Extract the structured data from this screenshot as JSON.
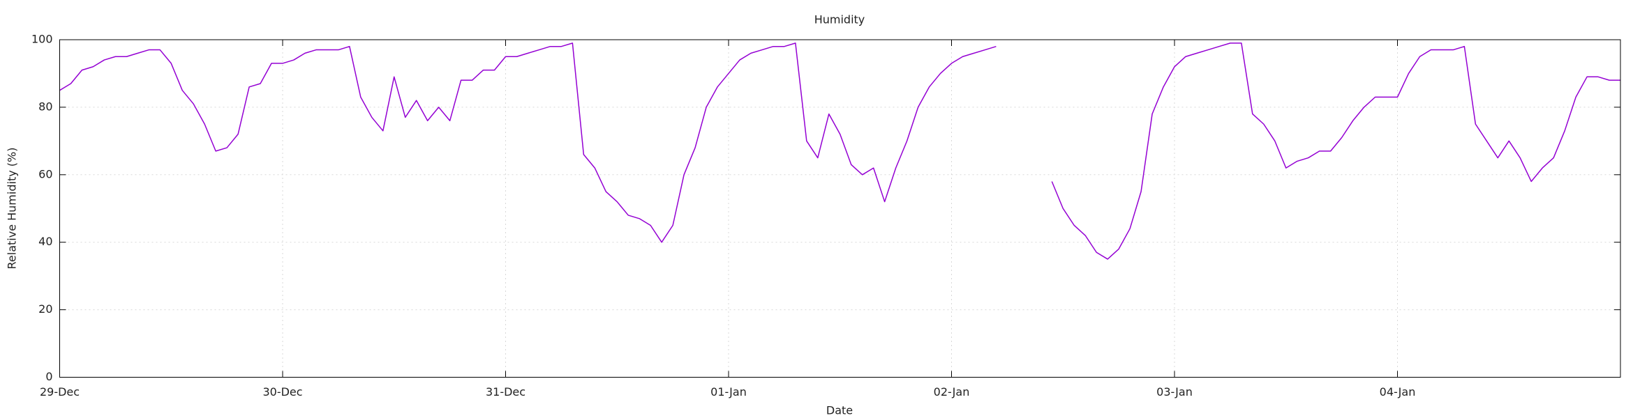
{
  "chart_data": {
    "type": "line",
    "title": "Humidity",
    "xlabel": "Date",
    "ylabel": "Relative Humidity (%)",
    "xlim": [
      0,
      7
    ],
    "xticks": [
      {
        "value": 0,
        "label": "29-Dec"
      },
      {
        "value": 1,
        "label": "30-Dec"
      },
      {
        "value": 2,
        "label": "31-Dec"
      },
      {
        "value": 3,
        "label": "01-Jan"
      },
      {
        "value": 4,
        "label": "02-Jan"
      },
      {
        "value": 5,
        "label": "03-Jan"
      },
      {
        "value": 6,
        "label": "04-Jan"
      }
    ],
    "ylim": [
      0,
      100
    ],
    "yticks": [
      0,
      20,
      40,
      60,
      80,
      100
    ],
    "grid": true,
    "x": [
      0,
      0.05,
      0.1,
      0.15,
      0.2,
      0.25,
      0.3,
      0.35,
      0.4,
      0.45,
      0.5,
      0.55,
      0.6,
      0.65,
      0.7,
      0.75,
      0.8,
      0.85,
      0.9,
      0.95,
      1,
      1.05,
      1.1,
      1.15,
      1.2,
      1.25,
      1.3,
      1.35,
      1.4,
      1.45,
      1.5,
      1.55,
      1.6,
      1.65,
      1.7,
      1.75,
      1.8,
      1.85,
      1.9,
      1.95,
      2,
      2.05,
      2.1,
      2.15,
      2.2,
      2.25,
      2.3,
      2.35,
      2.4,
      2.45,
      2.5,
      2.55,
      2.6,
      2.65,
      2.7,
      2.75,
      2.8,
      2.85,
      2.9,
      2.95,
      3,
      3.05,
      3.1,
      3.15,
      3.2,
      3.25,
      3.3,
      3.35,
      3.4,
      3.45,
      3.5,
      3.55,
      3.6,
      3.65,
      3.7,
      3.75,
      3.8,
      3.85,
      3.9,
      3.95,
      4,
      4.05,
      4.1,
      4.15,
      4.2,
      4.25,
      4.3,
      4.35,
      4.4,
      4.45,
      4.5,
      4.55,
      4.6,
      4.65,
      4.7,
      4.75,
      4.8,
      4.85,
      4.9,
      4.95,
      5,
      5.05,
      5.1,
      5.15,
      5.2,
      5.25,
      5.3,
      5.35,
      5.4,
      5.45,
      5.5,
      5.55,
      5.6,
      5.65,
      5.7,
      5.75,
      5.8,
      5.85,
      5.9,
      5.95,
      6,
      6.05,
      6.1,
      6.15,
      6.2,
      6.25,
      6.3,
      6.35,
      6.4,
      6.45,
      6.5,
      6.55,
      6.6,
      6.65,
      6.7,
      6.75,
      6.8,
      6.85,
      6.9,
      6.95,
      7
    ],
    "series": [
      {
        "name": "Relative Humidity (%)",
        "color": "#9400d3",
        "values": [
          85,
          87,
          91,
          92,
          94,
          95,
          95,
          96,
          97,
          97,
          93,
          85,
          81,
          75,
          67,
          68,
          72,
          86,
          87,
          93,
          93,
          94,
          96,
          97,
          97,
          97,
          98,
          83,
          77,
          73,
          89,
          77,
          82,
          76,
          80,
          76,
          88,
          88,
          91,
          91,
          95,
          95,
          96,
          97,
          98,
          98,
          99,
          66,
          62,
          55,
          52,
          48,
          47,
          45,
          40,
          45,
          60,
          68,
          80,
          86,
          90,
          94,
          96,
          97,
          98,
          98,
          99,
          70,
          65,
          78,
          72,
          63,
          60,
          62,
          52,
          62,
          70,
          80,
          86,
          90,
          93,
          95,
          96,
          97,
          98,
          null,
          null,
          null,
          null,
          58,
          50,
          45,
          42,
          37,
          35,
          38,
          44,
          55,
          78,
          86,
          92,
          95,
          96,
          97,
          98,
          99,
          99,
          78,
          75,
          70,
          62,
          64,
          65,
          67,
          67,
          71,
          76,
          80,
          83,
          83,
          83,
          90,
          95,
          97,
          97,
          97,
          98,
          75,
          70,
          65,
          70,
          65,
          58,
          62,
          65,
          73,
          83,
          89,
          89,
          88,
          88
        ]
      }
    ]
  }
}
